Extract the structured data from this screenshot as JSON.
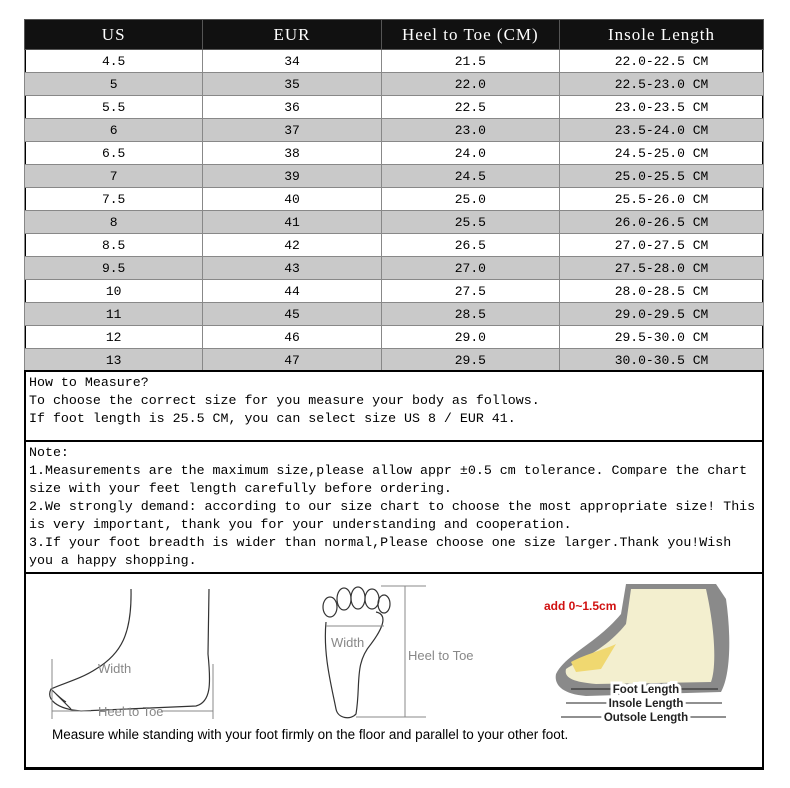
{
  "table": {
    "headers": [
      "US",
      "EUR",
      "Heel to Toe (CM)",
      "Insole Length"
    ],
    "rows": [
      [
        "4.5",
        "34",
        "21.5",
        "22.0-22.5 CM"
      ],
      [
        "5",
        "35",
        "22.0",
        "22.5-23.0 CM"
      ],
      [
        "5.5",
        "36",
        "22.5",
        "23.0-23.5 CM"
      ],
      [
        "6",
        "37",
        "23.0",
        "23.5-24.0 CM"
      ],
      [
        "6.5",
        "38",
        "24.0",
        "24.5-25.0 CM"
      ],
      [
        "7",
        "39",
        "24.5",
        "25.0-25.5 CM"
      ],
      [
        "7.5",
        "40",
        "25.0",
        "25.5-26.0 CM"
      ],
      [
        "8",
        "41",
        "25.5",
        "26.0-26.5 CM"
      ],
      [
        "8.5",
        "42",
        "26.5",
        "27.0-27.5 CM"
      ],
      [
        "9.5",
        "43",
        "27.0",
        "27.5-28.0 CM"
      ],
      [
        "10",
        "44",
        "27.5",
        "28.0-28.5 CM"
      ],
      [
        "11",
        "45",
        "28.5",
        "29.0-29.5 CM"
      ],
      [
        "12",
        "46",
        "29.0",
        "29.5-30.0 CM"
      ],
      [
        "13",
        "47",
        "29.5",
        "30.0-30.5 CM"
      ]
    ]
  },
  "measure": {
    "lines": [
      "How to Measure?",
      "To choose the correct size for you measure your body as follows.",
      "If foot length is 25.5 CM, you can select size US 8 / EUR 41."
    ]
  },
  "note": {
    "lines": [
      "Note:",
      "1.Measurements are the maximum size,please allow appr ±0.5 cm tolerance. Compare the chart size with your feet length carefully before ordering.",
      "2.We strongly demand: according to our size chart to choose the most appropriate size! This is very important, thank you for your understanding and cooperation.",
      "3.If your foot breadth is wider than normal,Please choose one size larger.Thank you!Wish you a happy shopping."
    ]
  },
  "diagram": {
    "side_width": "Width",
    "side_heel": "Heel to Toe",
    "sole_width": "Width",
    "sole_heel": "Heel to Toe",
    "add": "add 0~1.5cm",
    "foot_length": "Foot Length",
    "insole_length": "Insole Length",
    "outsole_length": "Outsole Length",
    "caption": "Measure while standing with your foot firmly on the floor and parallel to your other foot."
  }
}
